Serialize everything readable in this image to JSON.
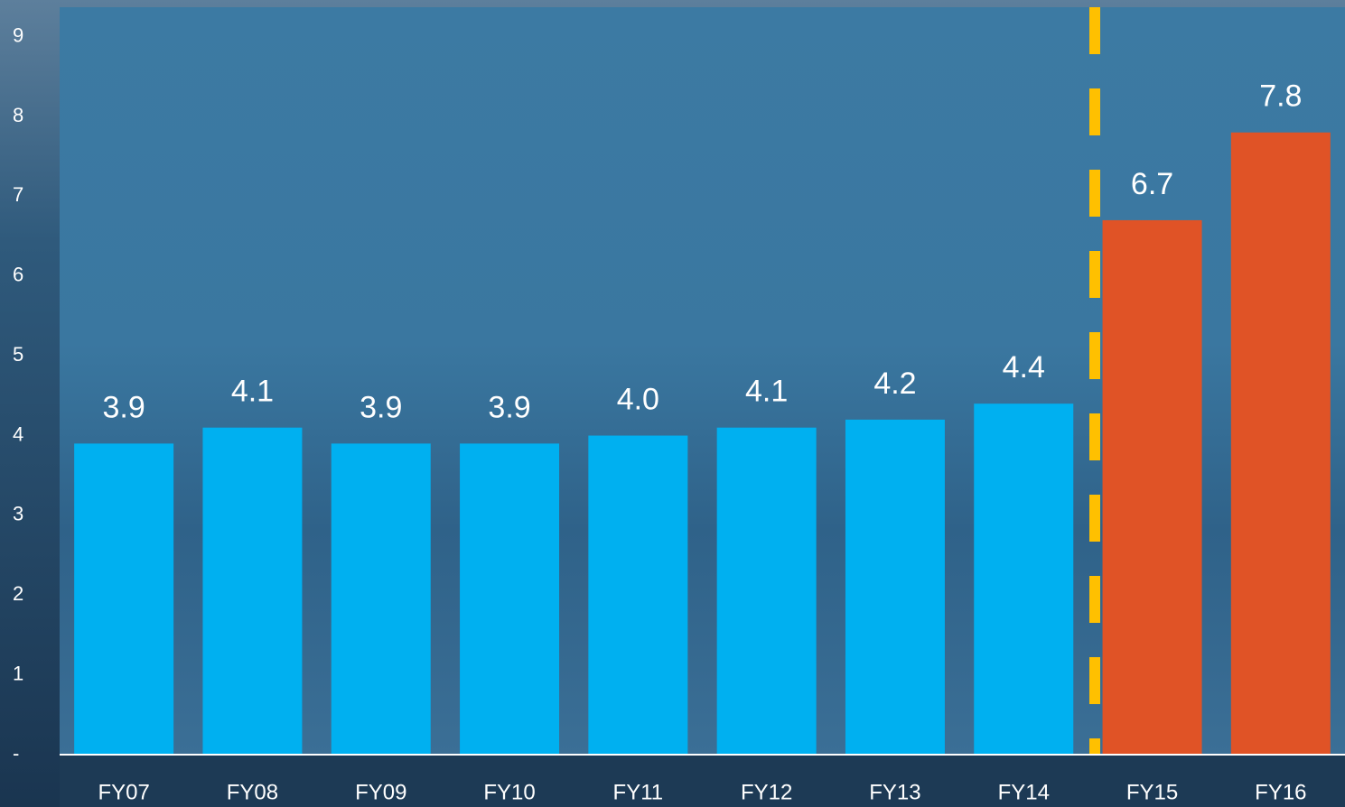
{
  "chart_data": {
    "type": "bar",
    "categories": [
      "FY07",
      "FY08",
      "FY09",
      "FY10",
      "FY11",
      "FY12",
      "FY13",
      "FY14",
      "FY15",
      "FY16"
    ],
    "values": [
      3.9,
      4.1,
      3.9,
      3.9,
      4.0,
      4.1,
      4.2,
      4.4,
      6.7,
      7.8
    ],
    "value_labels": [
      "3.9",
      "4.1",
      "3.9",
      "3.9",
      "4.0",
      "4.1",
      "4.2",
      "4.4",
      "6.7",
      "7.8"
    ],
    "colors": [
      "#00b0f0",
      "#00b0f0",
      "#00b0f0",
      "#00b0f0",
      "#00b0f0",
      "#00b0f0",
      "#00b0f0",
      "#00b0f0",
      "#e05326",
      "#e05326"
    ],
    "ylim": [
      0,
      9.37
    ],
    "yticks": [
      {
        "value": 0,
        "label": "-"
      },
      1,
      2,
      3,
      4,
      5,
      6,
      7,
      8,
      9
    ]
  }
}
